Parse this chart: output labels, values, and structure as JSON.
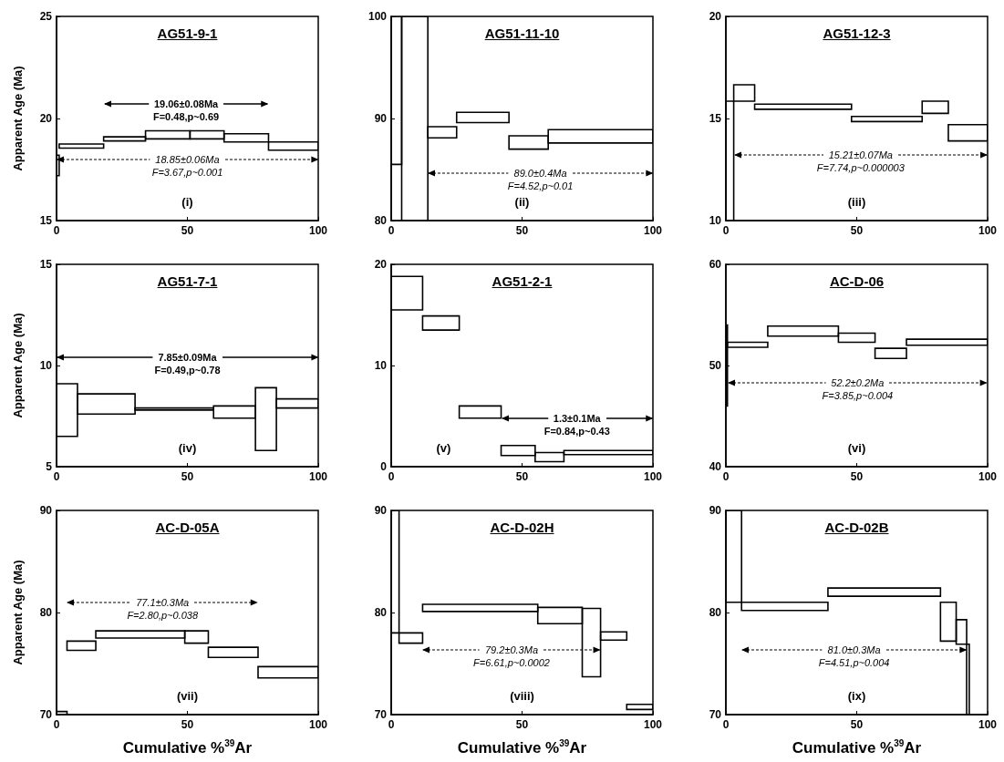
{
  "chart_data": [
    {
      "type": "histogram",
      "title": "AG51-9-1",
      "ylabel": "Apparent Age (Ma)",
      "bins": [
        0,
        1,
        18,
        34,
        51,
        64,
        81,
        100
      ],
      "base": [
        17.2,
        18.55,
        18.9,
        19.0,
        19.0,
        18.85,
        18.45
      ],
      "values": [
        1.0,
        0.2,
        0.2,
        0.4,
        0.4,
        0.4,
        0.4
      ],
      "xlim": [
        0,
        100
      ],
      "xticks": [
        0,
        50,
        100
      ],
      "ylim": [
        15,
        25
      ],
      "yticks": [
        15,
        20,
        25
      ],
      "annotations": [
        "(i)",
        "19.06±0.08Ma\nF=0.48,p~0.69",
        {
          "text": "18.85±0.06Ma\nF=3.67,p~0.001",
          "x": 0,
          "y": 18.0
        }
      ]
    },
    {
      "type": "histogram",
      "title": "AG51-11-10",
      "bins": [
        0,
        4,
        14,
        25,
        45,
        60,
        100
      ],
      "base": [
        85.5,
        80,
        88.1,
        89.6,
        87.0,
        87.6
      ],
      "values": [
        14.5,
        20,
        1.1,
        1.0,
        1.3,
        1.3
      ],
      "xlim": [
        0,
        100
      ],
      "xticks": [
        0,
        50,
        100
      ],
      "ylim": [
        80,
        100
      ],
      "yticks": [
        80,
        90,
        100
      ],
      "annotations": [
        "(ii)",
        {
          "text": "89.0±0.4Ma\nF=4.52,p~0.01",
          "x": 14,
          "y": 84.6
        }
      ]
    },
    {
      "type": "histogram",
      "title": "AG51-12-3",
      "bins": [
        0,
        3,
        11,
        48,
        75,
        85,
        100
      ],
      "base": [
        10,
        15.85,
        15.45,
        14.85,
        15.25,
        13.9
      ],
      "values": [
        5.85,
        0.8,
        0.25,
        0.25,
        0.6,
        0.8
      ],
      "xlim": [
        0,
        100
      ],
      "xticks": [
        0,
        50,
        100
      ],
      "ylim": [
        10,
        20
      ],
      "yticks": [
        10,
        15,
        20
      ],
      "annotations": [
        "(iii)",
        {
          "text": "15.21±0.07Ma\nF=7.74,p~0.000003",
          "x": 3,
          "y": 13.2
        }
      ]
    },
    {
      "type": "histogram",
      "title": "AG51-7-1",
      "ylabel": "Apparent Age (Ma)",
      "bins": [
        0,
        8,
        30,
        60,
        76,
        84,
        100
      ],
      "base": [
        6.5,
        7.6,
        7.8,
        7.4,
        5.8,
        7.9
      ],
      "values": [
        2.6,
        1.0,
        0.1,
        0.6,
        3.1,
        0.45
      ],
      "xlim": [
        0,
        100
      ],
      "xticks": [
        0,
        50,
        100
      ],
      "ylim": [
        5,
        15
      ],
      "yticks": [
        5,
        10,
        15
      ],
      "annotations": [
        "(iv)",
        "7.85±0.09Ma\nF=0.49,p~0.78"
      ]
    },
    {
      "type": "histogram",
      "title": "AG51-2-1",
      "bins": [
        0,
        12,
        26,
        42,
        55,
        66,
        100
      ],
      "base": [
        15.5,
        13.5,
        4.8,
        1.1,
        0.5,
        1.2
      ],
      "values": [
        3.3,
        1.4,
        1.2,
        1.0,
        0.9,
        0.4
      ],
      "xlim": [
        0,
        100
      ],
      "xticks": [
        0,
        50,
        100
      ],
      "ylim": [
        0,
        20
      ],
      "yticks": [
        0,
        10,
        20
      ],
      "annotations": [
        "(v)",
        "1.3±0.1Ma\nF=0.84,p~0.43"
      ]
    },
    {
      "type": "histogram",
      "title": "AC-D-06",
      "bins": [
        0,
        0.6,
        16,
        43,
        57,
        69,
        100
      ],
      "base": [
        46,
        51.8,
        52.9,
        52.3,
        50.7,
        52.0
      ],
      "values": [
        8,
        0.5,
        1.0,
        0.9,
        1.0,
        0.6
      ],
      "xlim": [
        0,
        100
      ],
      "xticks": [
        0,
        50,
        100
      ],
      "ylim": [
        40,
        60
      ],
      "yticks": [
        40,
        50,
        60
      ],
      "annotations": [
        "(vi)",
        {
          "text": "52.2±0.2Ma\nF=3.85,p~0.004",
          "x": 0.6,
          "y": 48.3
        }
      ]
    },
    {
      "type": "histogram",
      "title": "AC-D-05A",
      "ylabel": "Apparent Age (Ma)",
      "xlabel": "Cumulative %$^{39}$Ar",
      "bins": [
        0,
        4,
        15,
        49,
        58,
        77,
        100
      ],
      "base": [
        70,
        76.3,
        77.5,
        77.0,
        75.6,
        73.6
      ],
      "values": [
        0.3,
        0.9,
        0.7,
        1.2,
        1.0,
        1.1
      ],
      "xlim": [
        0,
        100
      ],
      "xticks": [
        0,
        50,
        100
      ],
      "ylim": [
        70,
        90
      ],
      "yticks": [
        70,
        80,
        90
      ],
      "annotations": [
        "(vii)",
        "77.1±0.3Ma\nF=2.80,p~0.038"
      ]
    },
    {
      "type": "histogram",
      "title": "AC-D-02H",
      "xlabel": "Cumulative %$^{39}$Ar",
      "bins": [
        0,
        3,
        12,
        56,
        73,
        80,
        90,
        100
      ],
      "base": [
        78,
        77.0,
        80.1,
        78.9,
        73.7,
        77.3,
        70.5
      ],
      "values": [
        12,
        1.0,
        0.7,
        1.6,
        6.7,
        0.8,
        0.5
      ],
      "xlim": [
        0,
        100
      ],
      "xticks": [
        0,
        50,
        100
      ],
      "ylim": [
        70,
        90
      ],
      "yticks": [
        70,
        80,
        90
      ],
      "annotations": [
        "(viii)",
        {
          "text": "79.2±0.3Ma\nF=6.61,p~0.0002",
          "x": 80,
          "y": 76.3
        }
      ]
    },
    {
      "type": "histogram",
      "title": "AC-D-02B",
      "xlabel": "Cumulative %$^{39}$Ar",
      "bins": [
        0,
        6,
        39,
        82,
        88,
        92,
        93
      ],
      "base": [
        81,
        80.2,
        81.6,
        77.2,
        76.9,
        70
      ],
      "values": [
        9,
        0.8,
        0.8,
        3.8,
        2.4,
        6.9
      ],
      "xlim": [
        0,
        100
      ],
      "xticks": [
        0,
        50,
        100
      ],
      "ylim": [
        70,
        90
      ],
      "yticks": [
        70,
        80,
        90
      ],
      "annotations": [
        "(ix)",
        {
          "text": "81.0±0.3Ma\nF=4.51,p~0.004",
          "x": 92,
          "y": 76.3
        }
      ]
    }
  ]
}
